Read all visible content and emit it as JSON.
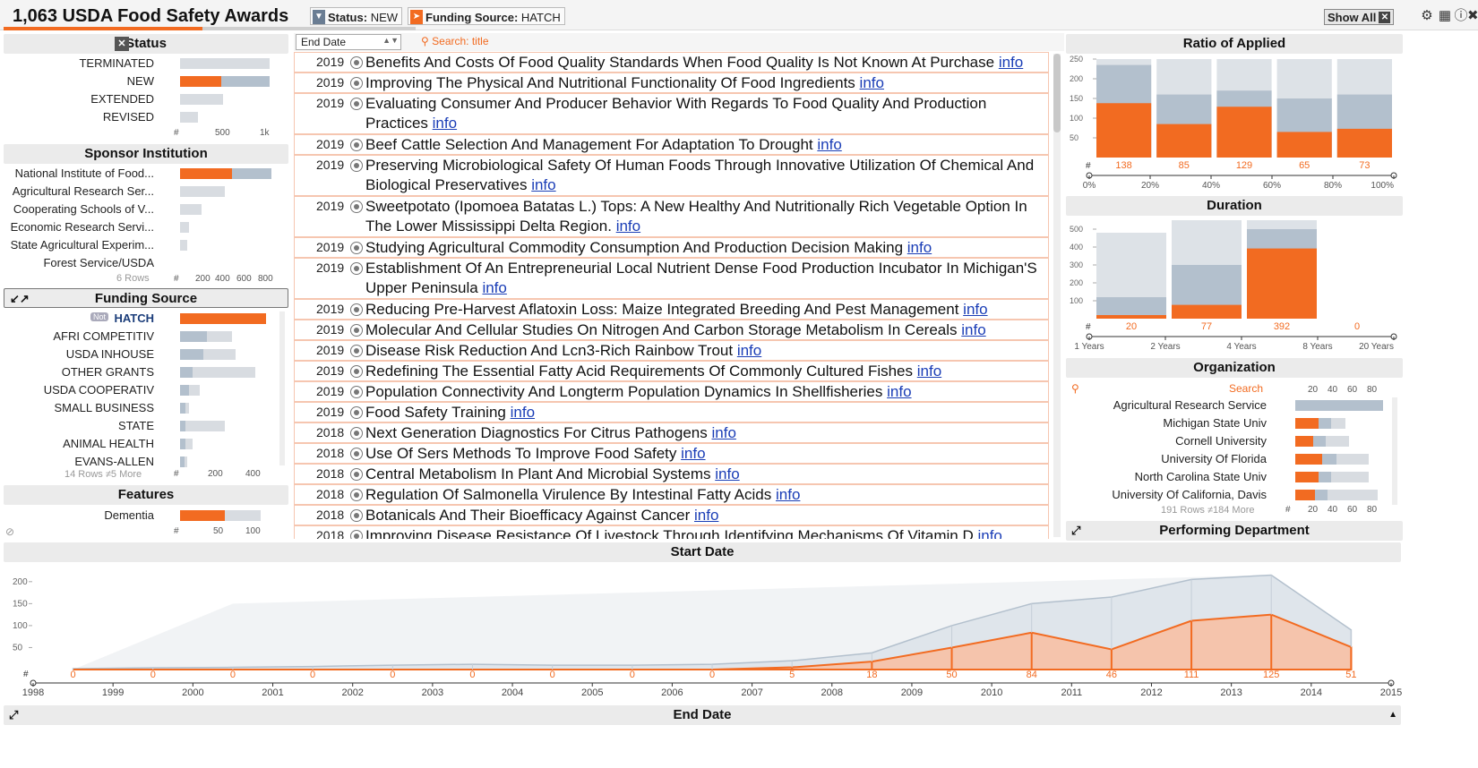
{
  "header": {
    "title": "1,063 USDA Food Safety Awards",
    "filters": [
      {
        "key": "Status:",
        "value": "NEW"
      },
      {
        "key": "Funding Source:",
        "value": "HATCH"
      }
    ],
    "show_all": "Show All"
  },
  "status": {
    "title": "Status",
    "rows": [
      {
        "label": "TERMINATED",
        "count": "0"
      },
      {
        "label": "NEW",
        "count": "490"
      },
      {
        "label": "EXTENDED",
        "count": "0"
      },
      {
        "label": "REVISED",
        "count": "0"
      }
    ],
    "axis": [
      "#",
      "500",
      "1k"
    ]
  },
  "sponsor": {
    "title": "Sponsor Institution",
    "rows": [
      {
        "label": "National Institute of Food...",
        "count": "490"
      },
      {
        "label": "Agricultural Research Ser...",
        "count": "0"
      },
      {
        "label": "Cooperating Schools of V...",
        "count": "0"
      },
      {
        "label": "Economic Research Servi...",
        "count": "0"
      },
      {
        "label": "State Agricultural Experim...",
        "count": "0"
      },
      {
        "label": "Forest Service/USDA",
        "count": "0"
      }
    ],
    "footer": "6 Rows",
    "axis": [
      "#",
      "200",
      "400",
      "600",
      "800"
    ]
  },
  "funding": {
    "title": "Funding Source",
    "rows": [
      {
        "label": "HATCH",
        "count": "490",
        "tag": "Not"
      },
      {
        "label": "AFRI COMPETITIV",
        "count": "146"
      },
      {
        "label": "USDA INHOUSE",
        "count": "138"
      },
      {
        "label": "OTHER GRANTS",
        "count": "74"
      },
      {
        "label": "USDA COOPERATIV",
        "count": "58"
      },
      {
        "label": "SMALL BUSINESS",
        "count": "31"
      },
      {
        "label": "STATE",
        "count": "30"
      },
      {
        "label": "ANIMAL HEALTH",
        "count": "29"
      },
      {
        "label": "EVANS-ALLEN",
        "count": "25"
      }
    ],
    "footer": "14 Rows ≠5 More",
    "axis": [
      "#",
      "200",
      "400"
    ]
  },
  "features": {
    "title": "Features",
    "rows": [
      {
        "label": "Dementia",
        "count": "60"
      }
    ],
    "axis": [
      "#",
      "50",
      "100"
    ]
  },
  "list": {
    "sort_label": "End Date",
    "search_placeholder": "Search: title",
    "link_text": "info",
    "items": [
      {
        "year": "2019",
        "title": "Benefits And Costs Of Food Quality Standards When Food Quality Is Not Known At Purchase"
      },
      {
        "year": "2019",
        "title": "Improving The Physical And Nutritional Functionality Of Food Ingredients"
      },
      {
        "year": "2019",
        "title": "Evaluating Consumer And Producer Behavior With Regards To Food Quality And Production Practices"
      },
      {
        "year": "2019",
        "title": "Beef Cattle Selection And Management For Adaptation To Drought"
      },
      {
        "year": "2019",
        "title": "Preserving Microbiological Safety Of Human Foods Through Innovative Utilization Of Chemical And Biological Preservatives"
      },
      {
        "year": "2019",
        "title": "Sweetpotato (Ipomoea Batatas L.) Tops: A New Healthy And Nutritionally Rich Vegetable Option In The Lower Mississippi Delta Region."
      },
      {
        "year": "2019",
        "title": "Studying Agricultural Commodity Consumption And Production Decision Making"
      },
      {
        "year": "2019",
        "title": "Establishment Of An Entrepreneurial Local Nutrient Dense Food Production Incubator In Michigan'S Upper Peninsula"
      },
      {
        "year": "2019",
        "title": "Reducing Pre-Harvest Aflatoxin Loss: Maize Integrated Breeding And Pest Management"
      },
      {
        "year": "2019",
        "title": "Molecular And Cellular Studies On Nitrogen And Carbon Storage Metabolism In Cereals"
      },
      {
        "year": "2019",
        "title": "Disease Risk Reduction And Lcn3-Rich Rainbow Trout"
      },
      {
        "year": "2019",
        "title": "Redefining The Essential Fatty Acid Requirements Of Commonly Cultured Fishes"
      },
      {
        "year": "2019",
        "title": "Population Connectivity And Longterm Population Dynamics In Shellfisheries"
      },
      {
        "year": "2019",
        "title": "Food Safety Training"
      },
      {
        "year": "2018",
        "title": "Next Generation Diagnostics For Citrus Pathogens"
      },
      {
        "year": "2018",
        "title": "Use Of Sers Methods To Improve Food Safety"
      },
      {
        "year": "2018",
        "title": "Central Metabolism In Plant And Microbial Systems"
      },
      {
        "year": "2018",
        "title": "Regulation Of Salmonella Virulence By Intestinal Fatty Acids"
      },
      {
        "year": "2018",
        "title": "Botanicals And Their Bioefficacy Against Cancer"
      },
      {
        "year": "2018",
        "title": "Improving Disease Resistance Of Livestock Through Identifying Mechanisms Of Vitamin D"
      }
    ]
  },
  "ratio": {
    "title": "Ratio of Applied",
    "counts": [
      "138",
      "85",
      "129",
      "65",
      "73"
    ],
    "x_ticks": [
      "0%",
      "20%",
      "40%",
      "60%",
      "80%",
      "100%"
    ],
    "y_ticks": [
      "250",
      "200",
      "150",
      "100",
      "50"
    ]
  },
  "duration": {
    "title": "Duration",
    "counts": [
      "20",
      "77",
      "392",
      "0"
    ],
    "x_ticks": [
      "1 Years",
      "2 Years",
      "4 Years",
      "8 Years",
      "20 Years"
    ],
    "y_ticks": [
      "500",
      "400",
      "300",
      "200",
      "100"
    ]
  },
  "organization": {
    "title": "Organization",
    "search_label": "Search",
    "axis": [
      "20",
      "40",
      "60",
      "80"
    ],
    "rows": [
      {
        "label": "Agricultural Research Service",
        "count": "0"
      },
      {
        "label": "Michigan State Univ",
        "count": "25"
      },
      {
        "label": "Cornell University",
        "count": "19"
      },
      {
        "label": "University Of Florida",
        "count": "28"
      },
      {
        "label": "North Carolina State Univ",
        "count": "25"
      },
      {
        "label": "University Of California, Davis",
        "count": "21"
      }
    ],
    "footer": "191 Rows ≠184 More"
  },
  "performing": {
    "title": "Performing Department"
  },
  "timeline": {
    "title": "Start Date",
    "footer_title": "End Date",
    "hash": "#"
  },
  "colors": {
    "accent": "#f26b21",
    "total": "#b3c0cd",
    "bg_total": "#dde2e7",
    "link": "#1a3db6"
  },
  "chart_data": [
    {
      "type": "bar",
      "title": "Ratio of Applied",
      "categories": [
        "0%-20%",
        "20%-40%",
        "40%-60%",
        "60%-80%",
        "80%-100%"
      ],
      "series": [
        {
          "values": [
            138,
            85,
            129,
            65,
            73
          ]
        },
        {
          "values": [
            235,
            160,
            170,
            150,
            160
          ]
        }
      ],
      "ylim": [
        0,
        250
      ]
    },
    {
      "type": "bar",
      "title": "Duration",
      "categories": [
        "1-2 Years",
        "2-4 Years",
        "4-8 Years",
        "8-20 Years"
      ],
      "series": [
        {
          "values": [
            20,
            77,
            392,
            0
          ]
        },
        {
          "values": [
            120,
            300,
            500,
            0
          ]
        }
      ],
      "ylim": [
        0,
        550
      ]
    },
    {
      "type": "area",
      "title": "Start Date",
      "x": [
        1998,
        1999,
        2000,
        2001,
        2002,
        2003,
        2004,
        2005,
        2006,
        2007,
        2008,
        2009,
        2010,
        2011,
        2012,
        2013,
        2014,
        2015
      ],
      "series": [
        {
          "values": [
            0,
            0,
            0,
            0,
            0,
            0,
            0,
            0,
            0,
            0,
            5,
            18,
            50,
            84,
            46,
            111,
            125,
            51
          ]
        },
        {
          "values": [
            0,
            2,
            4,
            5,
            7,
            10,
            12,
            10,
            10,
            12,
            20,
            38,
            100,
            150,
            165,
            205,
            215,
            90
          ]
        }
      ],
      "ylim": [
        0,
        220
      ]
    }
  ]
}
